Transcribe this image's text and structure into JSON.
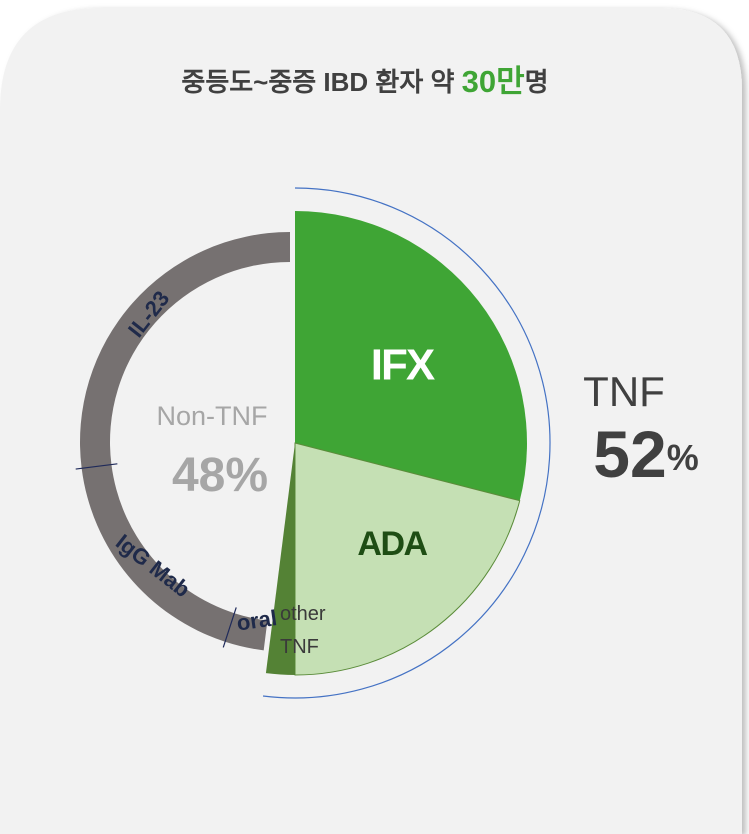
{
  "chart_data": {
    "type": "pie",
    "title": {
      "before": "중등도~중증 IBD 환자 약 ",
      "highlight": "30만",
      "after": "명"
    },
    "groups": [
      {
        "name": "TNF",
        "value": 52,
        "unit": "%",
        "color": "#4472c4",
        "segments": [
          {
            "name": "IFX",
            "value": 29,
            "color": "#3fa535"
          },
          {
            "name": "ADA",
            "value": 21,
            "color": "#c5e0b4"
          },
          {
            "name": "other TNF",
            "value": 2,
            "color": "#548235"
          }
        ]
      },
      {
        "name": "Non-TNF",
        "value": 48,
        "unit": "%",
        "color": "#767171",
        "segments": [
          {
            "name": "IL-23",
            "value": 27
          },
          {
            "name": "IgG Mab",
            "value": 18
          },
          {
            "name": "oral",
            "value": 3
          }
        ]
      }
    ]
  }
}
